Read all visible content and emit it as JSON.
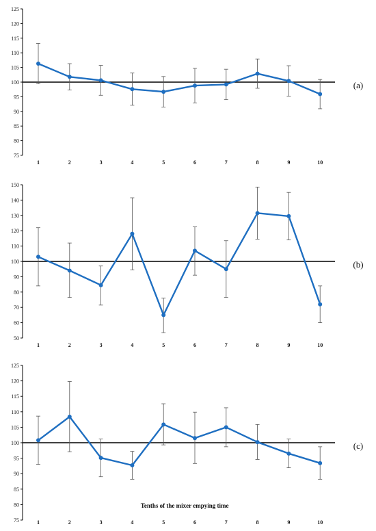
{
  "chart_data": [
    {
      "type": "line",
      "panel_label": "(a)",
      "x": [
        1,
        2,
        3,
        4,
        5,
        6,
        7,
        8,
        9,
        10
      ],
      "series": [
        {
          "values": [
            106.3,
            101.8,
            100.6,
            97.6,
            96.7,
            98.8,
            99.2,
            102.9,
            100.4,
            95.9
          ],
          "err_upper": [
            113.2,
            106.3,
            105.7,
            103.1,
            101.9,
            104.7,
            104.4,
            107.9,
            105.6,
            100.9
          ],
          "err_lower": [
            99.4,
            97.3,
            95.5,
            92.1,
            91.5,
            92.9,
            94.0,
            97.9,
            95.2,
            90.9
          ]
        }
      ],
      "reference_line": 100,
      "ylim": [
        75,
        125
      ],
      "yticks": [
        75,
        80,
        85,
        90,
        95,
        100,
        105,
        110,
        115,
        120,
        125
      ],
      "xlabel": "",
      "color": "#1F6FC1"
    },
    {
      "type": "line",
      "panel_label": "(b)",
      "x": [
        1,
        2,
        3,
        4,
        5,
        6,
        7,
        8,
        9,
        10
      ],
      "series": [
        {
          "values": [
            103,
            94,
            84.5,
            118,
            65,
            107,
            95,
            131.5,
            129.5,
            72
          ],
          "err_upper": [
            122,
            112,
            97,
            141.5,
            76,
            122.5,
            113.5,
            148.5,
            145,
            84
          ],
          "err_lower": [
            84,
            76.5,
            71.5,
            94.5,
            53.5,
            91,
            76.5,
            114.5,
            114,
            60
          ]
        }
      ],
      "reference_line": 100,
      "ylim": [
        50,
        150
      ],
      "yticks": [
        50,
        60,
        70,
        80,
        90,
        100,
        110,
        120,
        130,
        140,
        150
      ],
      "xlabel": "",
      "color": "#1F6FC1"
    },
    {
      "type": "line",
      "panel_label": "(c)",
      "x": [
        1,
        2,
        3,
        4,
        5,
        6,
        7,
        8,
        9,
        10
      ],
      "series": [
        {
          "values": [
            100.8,
            108.4,
            95.1,
            92.7,
            105.9,
            101.5,
            105.0,
            100.2,
            96.5,
            93.4
          ],
          "err_upper": [
            108.6,
            119.8,
            101.2,
            97.2,
            112.6,
            109.9,
            111.3,
            105.9,
            101.2,
            98.7
          ],
          "err_lower": [
            93.0,
            97.1,
            89.0,
            88.2,
            99.3,
            93.3,
            98.7,
            94.6,
            91.9,
            88.2
          ]
        }
      ],
      "reference_line": 100,
      "ylim": [
        75,
        125
      ],
      "yticks": [
        75,
        80,
        85,
        90,
        95,
        100,
        105,
        110,
        115,
        120,
        125
      ],
      "xlabel": "Tenths of the mixer empying time",
      "color": "#1F6FC1"
    }
  ]
}
